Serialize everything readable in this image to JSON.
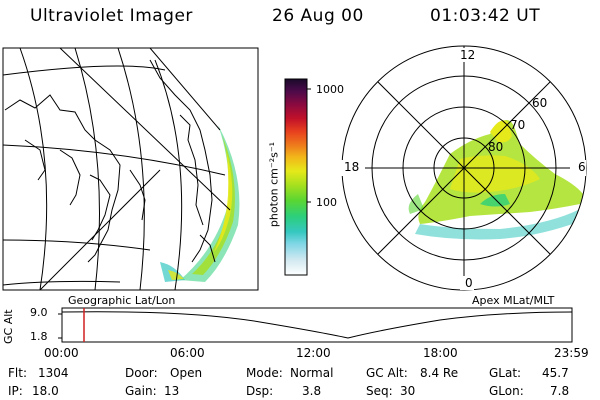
{
  "header": {
    "instrument": "Ultraviolet Imager",
    "date": "26 Aug 00",
    "time": "01:03:42 UT"
  },
  "colorbar": {
    "unit_label": "photon cm⁻²s⁻¹",
    "ticks": [
      "1000",
      "100"
    ],
    "colors": [
      "#ffffff",
      "#cfe8f0",
      "#7fd6e6",
      "#35c8c0",
      "#2ccf7a",
      "#5ad632",
      "#a8e01e",
      "#e6e91a",
      "#f2b81a",
      "#ee7d1c",
      "#e8421e",
      "#c0102a",
      "#8a0a40",
      "#4a0a4a",
      "#1a0a2a"
    ]
  },
  "map_left": {
    "caption": "Geographic Lat/Lon"
  },
  "polar_plot": {
    "caption": "Apex MLat/MLT",
    "mlt_labels": [
      "12",
      "18",
      "6",
      "0"
    ],
    "lat_labels": [
      "60",
      "70",
      "80"
    ]
  },
  "timeline": {
    "ylabel": "GC Alt",
    "yticks": [
      "9.0",
      "1.8"
    ],
    "xticks": [
      "00:00",
      "06:00",
      "12:00",
      "18:00",
      "23:59"
    ],
    "marker_color": "#d02020"
  },
  "info": {
    "flt_label": "Flt:",
    "flt_value": "1304",
    "door_label": "Door:",
    "door_value": "Open",
    "mode_label": "Mode:",
    "mode_value": "Normal",
    "gcalt_label": "GC Alt:",
    "gcalt_value": "8.4 Re",
    "glat_label": "GLat:",
    "glat_value": "45.7",
    "ip_label": "IP:",
    "ip_value": "18.0",
    "gain_label": "Gain:",
    "gain_value": "13",
    "dsp_label": "Dsp:",
    "dsp_value": "3.8",
    "seq_label": "Seq:",
    "seq_value": "30",
    "glon_label": "GLon:",
    "glon_value": "7.8"
  }
}
